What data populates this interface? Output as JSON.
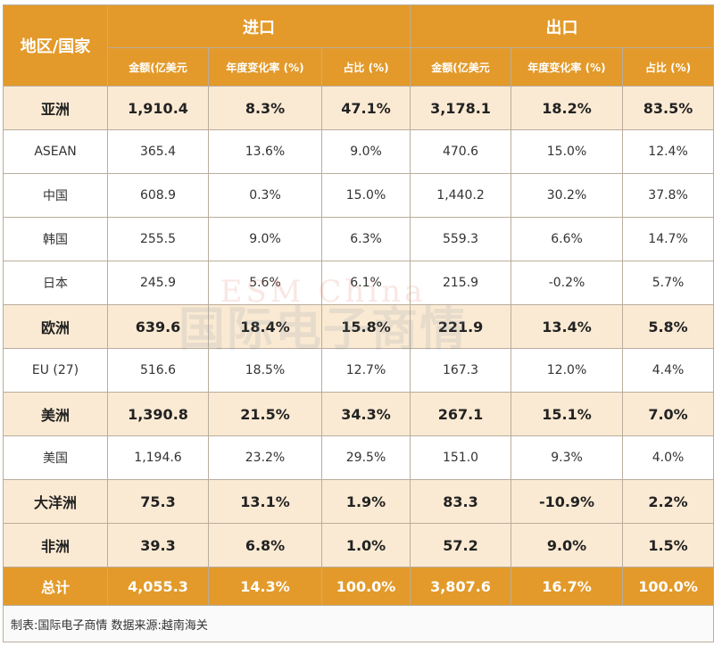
{
  "header": {
    "region": "地区/国家",
    "import": "进口",
    "export": "出口",
    "sub": [
      "金额(亿美元",
      "年度变化率 (%)",
      "占比 (%)",
      "金额(亿美元",
      "年度变化率 (%)",
      "占比 (%)"
    ]
  },
  "rows": [
    {
      "name": "亚洲",
      "bold": true,
      "v": [
        "1,910.4",
        "8.3%",
        "47.1%",
        "3,178.1",
        "18.2%",
        "83.5%"
      ]
    },
    {
      "name": "ASEAN",
      "bold": false,
      "v": [
        "365.4",
        "13.6%",
        "9.0%",
        "470.6",
        "15.0%",
        "12.4%"
      ]
    },
    {
      "name": "中国",
      "bold": false,
      "v": [
        "608.9",
        "0.3%",
        "15.0%",
        "1,440.2",
        "30.2%",
        "37.8%"
      ]
    },
    {
      "name": "韩国",
      "bold": false,
      "v": [
        "255.5",
        "9.0%",
        "6.3%",
        "559.3",
        "6.6%",
        "14.7%"
      ]
    },
    {
      "name": "日本",
      "bold": false,
      "v": [
        "245.9",
        "5.6%",
        "6.1%",
        "215.9",
        "-0.2%",
        "5.7%"
      ]
    },
    {
      "name": "欧洲",
      "bold": true,
      "v": [
        "639.6",
        "18.4%",
        "15.8%",
        "221.9",
        "13.4%",
        "5.8%"
      ]
    },
    {
      "name": "EU (27)",
      "bold": false,
      "v": [
        "516.6",
        "18.5%",
        "12.7%",
        "167.3",
        "12.0%",
        "4.4%"
      ]
    },
    {
      "name": "美洲",
      "bold": true,
      "v": [
        "1,390.8",
        "21.5%",
        "34.3%",
        "267.1",
        "15.1%",
        "7.0%"
      ]
    },
    {
      "name": "美国",
      "bold": false,
      "v": [
        "1,194.6",
        "23.2%",
        "29.5%",
        "151.0",
        "9.3%",
        "4.0%"
      ]
    },
    {
      "name": "大洋洲",
      "bold": true,
      "v": [
        "75.3",
        "13.1%",
        "1.9%",
        "83.3",
        "-10.9%",
        "2.2%"
      ]
    },
    {
      "name": "非洲",
      "bold": true,
      "v": [
        "39.3",
        "6.8%",
        "1.0%",
        "57.2",
        "9.0%",
        "1.5%"
      ]
    }
  ],
  "total": {
    "name": "总计",
    "v": [
      "4,055.3",
      "14.3%",
      "100.0%",
      "3,807.6",
      "16.7%",
      "100.0%"
    ]
  },
  "footer": "制表:国际电子商情 数据来源:越南海关",
  "watermark": {
    "line1": "ESM China",
    "line2": "国际电子商情"
  }
}
